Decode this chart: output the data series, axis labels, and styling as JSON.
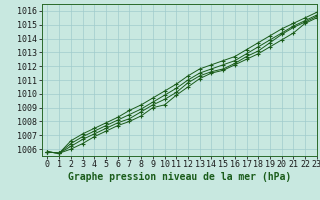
{
  "title": "Graphe pression niveau de la mer (hPa)",
  "xlim": [
    -0.5,
    23
  ],
  "ylim": [
    1005.5,
    1016.5
  ],
  "yticks": [
    1006,
    1007,
    1008,
    1009,
    1010,
    1011,
    1012,
    1013,
    1014,
    1015,
    1016
  ],
  "xticks": [
    0,
    1,
    2,
    3,
    4,
    5,
    6,
    7,
    8,
    9,
    10,
    11,
    12,
    13,
    14,
    15,
    16,
    17,
    18,
    19,
    20,
    21,
    22,
    23
  ],
  "bg_color": "#c8e8e0",
  "grid_color": "#a0cccc",
  "line_color": "#1a5c1a",
  "lines": [
    [
      1005.8,
      1005.7,
      1006.0,
      1006.4,
      1006.9,
      1007.3,
      1007.7,
      1008.0,
      1008.4,
      1009.0,
      1009.2,
      1009.9,
      1010.5,
      1011.1,
      1011.5,
      1011.7,
      1012.1,
      1012.5,
      1012.9,
      1013.4,
      1013.9,
      1014.4,
      1015.1,
      1015.5
    ],
    [
      1005.8,
      1005.7,
      1006.2,
      1006.7,
      1007.1,
      1007.5,
      1007.9,
      1008.2,
      1008.7,
      1009.2,
      1009.6,
      1010.1,
      1010.8,
      1011.3,
      1011.6,
      1011.8,
      1012.2,
      1012.7,
      1013.1,
      1013.7,
      1014.3,
      1014.8,
      1015.2,
      1015.6
    ],
    [
      1005.8,
      1005.7,
      1006.4,
      1006.9,
      1007.3,
      1007.7,
      1008.1,
      1008.5,
      1008.9,
      1009.4,
      1009.9,
      1010.4,
      1011.0,
      1011.5,
      1011.8,
      1012.1,
      1012.4,
      1012.9,
      1013.4,
      1013.9,
      1014.4,
      1014.9,
      1015.3,
      1015.7
    ],
    [
      1005.8,
      1005.7,
      1006.6,
      1007.1,
      1007.5,
      1007.9,
      1008.3,
      1008.8,
      1009.2,
      1009.7,
      1010.2,
      1010.7,
      1011.3,
      1011.8,
      1012.1,
      1012.4,
      1012.7,
      1013.2,
      1013.7,
      1014.2,
      1014.7,
      1015.1,
      1015.5,
      1015.9
    ]
  ],
  "title_fontsize": 7,
  "tick_fontsize": 6
}
